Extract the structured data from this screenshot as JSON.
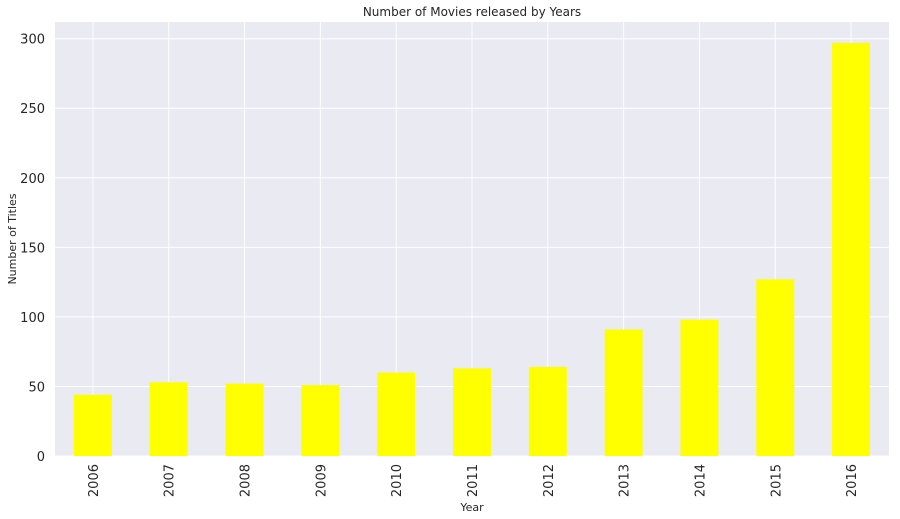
{
  "chart_data": {
    "type": "bar",
    "title": "Number of Movies released by Years",
    "xlabel": "Year",
    "ylabel": "Number of Titles",
    "categories": [
      "2006",
      "2007",
      "2008",
      "2009",
      "2010",
      "2011",
      "2012",
      "2013",
      "2014",
      "2015",
      "2016"
    ],
    "values": [
      44,
      53,
      52,
      51,
      60,
      63,
      64,
      91,
      98,
      127,
      297
    ],
    "ylim": [
      0,
      312
    ],
    "yticks": [
      0,
      50,
      100,
      150,
      200,
      250,
      300
    ],
    "grid": true,
    "legend": "none",
    "bar_color": "#ffff00",
    "plot_background": "#eaeaf2",
    "grid_color": "#ffffff"
  }
}
